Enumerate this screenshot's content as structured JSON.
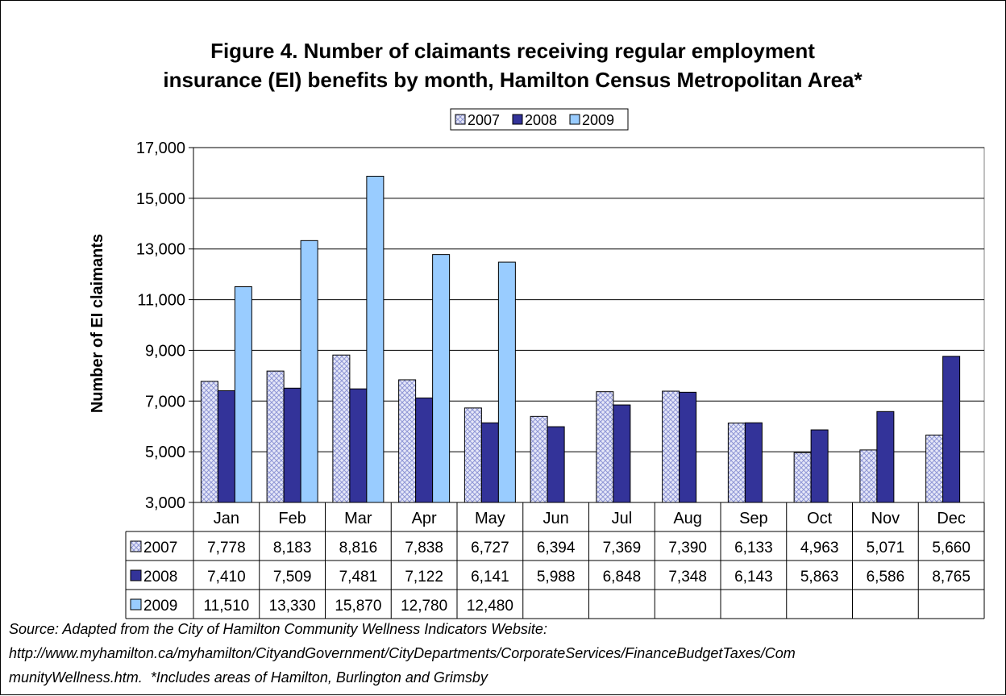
{
  "chart_data": {
    "type": "bar",
    "title_line1": "Figure 4.  Number of claimants receiving regular employment",
    "title_line2": "insurance (EI) benefits by month, Hamilton Census Metropolitan Area*",
    "ylabel": "Number of EI claimants",
    "xlabel": "",
    "ylim": [
      3000,
      17000
    ],
    "yticks": [
      3000,
      5000,
      7000,
      9000,
      11000,
      13000,
      15000,
      17000
    ],
    "ytick_labels": [
      "3,000",
      "5,000",
      "7,000",
      "9,000",
      "11,000",
      "13,000",
      "15,000",
      "17,000"
    ],
    "grid": true,
    "legend_position": "top-center",
    "categories": [
      "Jan",
      "Feb",
      "Mar",
      "Apr",
      "May",
      "Jun",
      "Jul",
      "Aug",
      "Sep",
      "Oct",
      "Nov",
      "Dec"
    ],
    "series": [
      {
        "name": "2007",
        "pattern": "crosshatch",
        "color": "#d0d4f0",
        "values": [
          7778,
          8183,
          8816,
          7838,
          6727,
          6394,
          7369,
          7390,
          6133,
          4963,
          5071,
          5660
        ],
        "labels": [
          "7,778",
          "8,183",
          "8,816",
          "7,838",
          "6,727",
          "6,394",
          "7,369",
          "7,390",
          "6,133",
          "4,963",
          "5,071",
          "5,660"
        ]
      },
      {
        "name": "2008",
        "pattern": "solid",
        "color": "#333399",
        "values": [
          7410,
          7509,
          7481,
          7122,
          6141,
          5988,
          6848,
          7348,
          6143,
          5863,
          6586,
          8765
        ],
        "labels": [
          "7,410",
          "7,509",
          "7,481",
          "7,122",
          "6,141",
          "5,988",
          "6,848",
          "7,348",
          "6,143",
          "5,863",
          "6,586",
          "8,765"
        ]
      },
      {
        "name": "2009",
        "pattern": "solid",
        "color": "#99ccff",
        "values": [
          11510,
          13330,
          15870,
          12780,
          12480,
          null,
          null,
          null,
          null,
          null,
          null,
          null
        ],
        "labels": [
          "11,510",
          "13,330",
          "15,870",
          "12,780",
          "12,480",
          "",
          "",
          "",
          "",
          "",
          "",
          ""
        ]
      }
    ],
    "data_table": true
  },
  "source_line1": "Source: Adapted from the City of Hamilton Community Wellness Indicators Website:",
  "source_line2": "http://www.myhamilton.ca/myhamilton/CityandGovernment/CityDepartments/CorporateServices/FinanceBudgetTaxes/Com",
  "source_line3": "munityWellness.htm.  *Includes areas of Hamilton, Burlington and Grimsby"
}
